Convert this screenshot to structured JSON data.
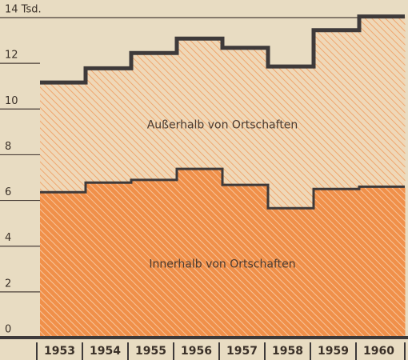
{
  "chart_data": {
    "type": "stacked-step-area",
    "categories": [
      "1953",
      "1954",
      "1955",
      "1956",
      "1957",
      "1958",
      "1959",
      "1960"
    ],
    "series": [
      {
        "name": "Innerhalb von Ortschaften",
        "color": "#f0904a",
        "values": [
          6.36,
          6.78,
          6.9,
          7.38,
          6.68,
          5.66,
          6.5,
          6.6
        ]
      },
      {
        "name": "Außerhalb von Ortschaften",
        "color": "#f3b27a",
        "values": [
          4.8,
          5.0,
          5.55,
          5.7,
          6.0,
          6.2,
          6.95,
          7.45
        ]
      }
    ],
    "ylim": [
      0,
      14
    ],
    "yticks": [
      0,
      2,
      4,
      6,
      8,
      10,
      12,
      {
        "value": 14,
        "label": "14 Tsd."
      }
    ],
    "grid": true
  }
}
